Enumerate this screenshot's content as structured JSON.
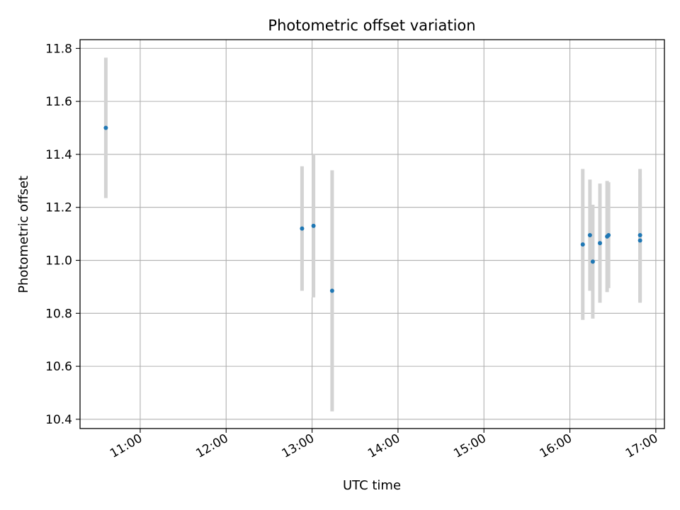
{
  "chart_data": {
    "type": "scatter",
    "title": "Photometric offset variation",
    "xlabel": "UTC time",
    "ylabel": "Photometric offset",
    "xlim": [
      "10:18",
      "17:06"
    ],
    "ylim": [
      10.365,
      11.833
    ],
    "xticks": [
      "11:00",
      "12:00",
      "13:00",
      "14:00",
      "15:00",
      "16:00",
      "17:00"
    ],
    "yticks": [
      "10.4",
      "10.6",
      "10.8",
      "11.0",
      "11.2",
      "11.4",
      "11.6",
      "11.8"
    ],
    "grid": true,
    "marker_color": "#1f77b4",
    "errorbar_color": "#d3d3d3",
    "points": [
      {
        "x": "10:36",
        "y": 11.5,
        "yerr": 0.265
      },
      {
        "x": "12:53",
        "y": 11.12,
        "yerr": 0.235
      },
      {
        "x": "13:01",
        "y": 11.13,
        "yerr": 0.27
      },
      {
        "x": "13:14",
        "y": 10.885,
        "yerr": 0.455
      },
      {
        "x": "16:09",
        "y": 11.06,
        "yerr": 0.285
      },
      {
        "x": "16:14",
        "y": 11.095,
        "yerr": 0.21
      },
      {
        "x": "16:16",
        "y": 10.995,
        "yerr": 0.215
      },
      {
        "x": "16:21",
        "y": 11.065,
        "yerr": 0.225
      },
      {
        "x": "16:26",
        "y": 11.09,
        "yerr": 0.21
      },
      {
        "x": "16:27",
        "y": 11.095,
        "yerr": 0.2
      },
      {
        "x": "16:49",
        "y": 11.075,
        "yerr": 0.235
      },
      {
        "x": "16:49",
        "y": 11.095,
        "yerr": 0.25
      }
    ]
  }
}
